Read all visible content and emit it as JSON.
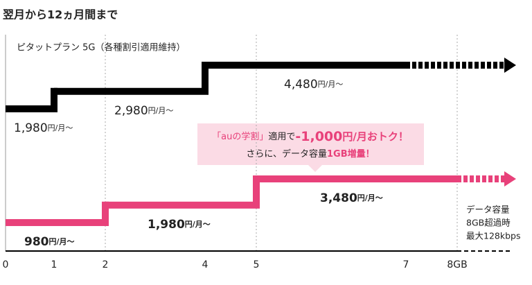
{
  "title": "翌月から12ヵ月間まで",
  "chart_data": [
    {
      "type": "step",
      "series": [
        {
          "name": "ピタットプラン 5G（各種割引適用維持）",
          "color": "#000000",
          "x": [
            0,
            1,
            4
          ],
          "values": [
            1980,
            2980,
            4480
          ],
          "value_labels": [
            "1,980",
            "2,980",
            "4,480"
          ],
          "dashed_from": 7
        }
      ],
      "unit_label": "円/月～",
      "ylim": [
        270,
        5830
      ]
    },
    {
      "type": "step",
      "series": [
        {
          "color": "#e8417a",
          "x": [
            0,
            2,
            5
          ],
          "values": [
            980,
            1980,
            3480
          ],
          "value_labels": [
            "980",
            "1,980",
            "3,480"
          ],
          "dashed_from": 8
        }
      ],
      "unit_label": "円/月～",
      "ylim": [
        -570,
        4990
      ],
      "xticks": [
        0,
        1,
        2,
        4,
        5,
        7,
        {
          "value": 8,
          "label": "8GB"
        }
      ],
      "callout": {
        "line1": [
          "「auの学割」",
          "適用で",
          "-1,000",
          "円/月おトク！"
        ],
        "line2": [
          "さらに、データ容量",
          "1GB増量！"
        ]
      },
      "note": [
        "データ容量",
        "8GB超過時",
        "最大128kbps"
      ]
    }
  ]
}
